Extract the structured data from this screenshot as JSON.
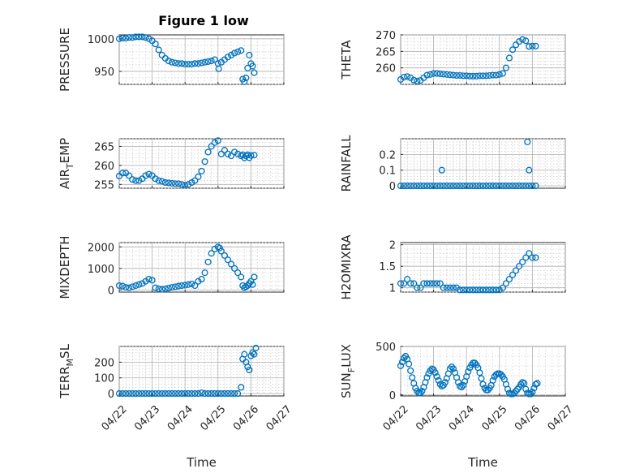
{
  "figure_title": "Figure 1 low",
  "marker_color": "#0072BD",
  "chart_data": [
    {
      "type": "scatter",
      "marker": "circle",
      "ylabel": "PRESSURE",
      "ylabel_sub": null,
      "xlim": [
        "04/22",
        "04/27"
      ],
      "ylim": [
        930,
        1006
      ],
      "yticks": [
        950,
        1000
      ],
      "ytick_labels": [
        "950",
        "1000"
      ],
      "xticks": [
        "04/22",
        "04/23",
        "04/24",
        "04/25",
        "04/26",
        "04/27"
      ],
      "xtick_labels_shown": false,
      "xlabel": "",
      "grid": true,
      "minor_grid": true,
      "x": [
        22.0,
        22.1,
        22.2,
        22.3,
        22.4,
        22.5,
        22.6,
        22.7,
        22.8,
        22.9,
        23.0,
        23.1,
        23.2,
        23.3,
        23.4,
        23.5,
        23.6,
        23.7,
        23.8,
        23.9,
        24.0,
        24.1,
        24.2,
        24.3,
        24.4,
        24.5,
        24.6,
        24.7,
        24.8,
        24.9,
        25.0,
        25.02,
        25.1,
        25.2,
        25.3,
        25.4,
        25.5,
        25.6,
        25.7,
        25.75,
        25.8,
        25.85,
        25.9,
        25.95,
        26.0,
        26.05,
        26.1
      ],
      "y": [
        1000,
        1001,
        1001,
        1002,
        1002,
        1003,
        1003,
        1003,
        1002,
        1000,
        997,
        992,
        983,
        975,
        970,
        966,
        964,
        963,
        962,
        962,
        961,
        961,
        961,
        962,
        962,
        963,
        964,
        965,
        966,
        968,
        962,
        954,
        964,
        968,
        972,
        975,
        978,
        980,
        982,
        938,
        934,
        940,
        955,
        975,
        962,
        958,
        948
      ]
    },
    {
      "type": "scatter",
      "marker": "circle",
      "ylabel": "THETA",
      "ylabel_sub": null,
      "xlim": [
        "04/22",
        "04/27"
      ],
      "ylim": [
        255,
        270
      ],
      "yticks": [
        260,
        265,
        270
      ],
      "ytick_labels": [
        "260",
        "265",
        "270"
      ],
      "xticks": [
        "04/22",
        "04/23",
        "04/24",
        "04/25",
        "04/26",
        "04/27"
      ],
      "xtick_labels_shown": false,
      "xlabel": "",
      "grid": true,
      "minor_grid": true,
      "x": [
        22.0,
        22.1,
        22.2,
        22.3,
        22.4,
        22.5,
        22.6,
        22.7,
        22.8,
        22.9,
        23.0,
        23.1,
        23.2,
        23.3,
        23.4,
        23.5,
        23.6,
        23.7,
        23.8,
        23.9,
        24.0,
        24.1,
        24.2,
        24.3,
        24.4,
        24.5,
        24.6,
        24.7,
        24.8,
        24.9,
        25.0,
        25.1,
        25.2,
        25.3,
        25.4,
        25.5,
        25.6,
        25.7,
        25.8,
        25.9,
        26.0,
        26.1
      ],
      "y": [
        256.5,
        257.2,
        257.4,
        257.0,
        256.3,
        256.0,
        256.2,
        257.0,
        257.8,
        258.0,
        258.3,
        258.3,
        258.2,
        258.1,
        258.0,
        257.9,
        257.8,
        257.7,
        257.7,
        257.6,
        257.6,
        257.5,
        257.5,
        257.5,
        257.6,
        257.6,
        257.6,
        257.7,
        257.8,
        257.8,
        258.0,
        258.3,
        260.0,
        263.0,
        265.5,
        267.0,
        268.0,
        268.6,
        268.2,
        266.5,
        266.6,
        266.6
      ]
    },
    {
      "type": "scatter",
      "marker": "circle",
      "ylabel": "AIR",
      "ylabel_sub": "T",
      "ylabel_suffix": "EMP",
      "xlim": [
        "04/22",
        "04/27"
      ],
      "ylim": [
        254,
        267
      ],
      "yticks": [
        255,
        260,
        265
      ],
      "ytick_labels": [
        "255",
        "260",
        "265"
      ],
      "xticks": [
        "04/22",
        "04/23",
        "04/24",
        "04/25",
        "04/26",
        "04/27"
      ],
      "xtick_labels_shown": false,
      "xlabel": "",
      "grid": true,
      "minor_grid": true,
      "x": [
        22.0,
        22.1,
        22.2,
        22.3,
        22.4,
        22.5,
        22.6,
        22.7,
        22.8,
        22.9,
        23.0,
        23.1,
        23.2,
        23.3,
        23.4,
        23.5,
        23.6,
        23.7,
        23.8,
        23.9,
        24.0,
        24.1,
        24.2,
        24.3,
        24.4,
        24.5,
        24.6,
        24.7,
        24.8,
        24.9,
        25.0,
        25.1,
        25.2,
        25.3,
        25.4,
        25.5,
        25.6,
        25.7,
        25.75,
        25.8,
        25.85,
        25.9,
        25.95,
        26.0,
        26.1
      ],
      "y": [
        257.2,
        258.0,
        258.0,
        257.3,
        256.3,
        256.0,
        256.0,
        256.5,
        257.3,
        257.7,
        257.3,
        256.5,
        256.0,
        255.8,
        255.5,
        255.4,
        255.3,
        255.2,
        255.2,
        255.0,
        254.8,
        255.0,
        255.5,
        256.0,
        257.0,
        258.5,
        261.0,
        263.5,
        265.0,
        266.0,
        266.5,
        263.0,
        264.0,
        263.0,
        262.5,
        263.5,
        263.0,
        262.5,
        262.8,
        262.0,
        262.5,
        262.8,
        262.0,
        262.6,
        262.7
      ]
    },
    {
      "type": "scatter",
      "marker": "circle",
      "ylabel": "RAINFALL",
      "ylabel_sub": null,
      "xlim": [
        "04/22",
        "04/27"
      ],
      "ylim": [
        -0.015,
        0.3
      ],
      "yticks": [
        0,
        0.1,
        0.2
      ],
      "ytick_labels": [
        "0",
        "0.1",
        "0.2"
      ],
      "xticks": [
        "04/22",
        "04/23",
        "04/24",
        "04/25",
        "04/26",
        "04/27"
      ],
      "xtick_labels_shown": false,
      "xlabel": "",
      "grid": true,
      "minor_grid": true,
      "x": [
        22.0,
        22.1,
        22.2,
        22.3,
        22.4,
        22.5,
        22.6,
        22.7,
        22.8,
        22.9,
        23.0,
        23.1,
        23.2,
        23.3,
        23.4,
        23.5,
        23.6,
        23.7,
        23.8,
        23.9,
        24.0,
        24.1,
        24.2,
        24.3,
        24.4,
        24.5,
        24.6,
        24.7,
        24.8,
        24.9,
        25.0,
        25.1,
        25.2,
        25.3,
        25.4,
        25.5,
        25.6,
        25.7,
        25.8,
        25.9,
        26.0,
        26.1,
        23.25,
        25.85,
        25.9
      ],
      "y": [
        0,
        0,
        0,
        0,
        0,
        0,
        0,
        0,
        0,
        0,
        0,
        0,
        0,
        0,
        0,
        0,
        0,
        0,
        0,
        0,
        0,
        0,
        0,
        0,
        0,
        0,
        0,
        0,
        0,
        0,
        0,
        0,
        0,
        0,
        0,
        0,
        0,
        0,
        0,
        0,
        0,
        0,
        0.1,
        0.28,
        0.1
      ]
    },
    {
      "type": "scatter",
      "marker": "circle",
      "ylabel": "MIXDEPTH",
      "ylabel_sub": null,
      "xlim": [
        "04/22",
        "04/27"
      ],
      "ylim": [
        -100,
        2200
      ],
      "yticks": [
        0,
        1000,
        2000
      ],
      "ytick_labels": [
        "0",
        "1000",
        "2000"
      ],
      "xticks": [
        "04/22",
        "04/23",
        "04/24",
        "04/25",
        "04/26",
        "04/27"
      ],
      "xtick_labels_shown": false,
      "xlabel": "",
      "grid": true,
      "minor_grid": true,
      "x": [
        22.0,
        22.1,
        22.2,
        22.3,
        22.4,
        22.5,
        22.6,
        22.7,
        22.8,
        22.9,
        23.0,
        23.1,
        23.2,
        23.3,
        23.4,
        23.5,
        23.6,
        23.7,
        23.8,
        23.9,
        24.0,
        24.1,
        24.2,
        24.3,
        24.4,
        24.5,
        24.6,
        24.7,
        24.8,
        24.9,
        25.0,
        25.05,
        25.1,
        25.2,
        25.3,
        25.4,
        25.5,
        25.6,
        25.7,
        25.75,
        25.8,
        25.85,
        25.9,
        25.95,
        26.0,
        26.05,
        26.1
      ],
      "y": [
        200,
        180,
        120,
        100,
        150,
        200,
        250,
        300,
        400,
        500,
        450,
        100,
        50,
        30,
        50,
        80,
        120,
        150,
        180,
        200,
        220,
        250,
        280,
        200,
        400,
        500,
        800,
        1300,
        1700,
        1900,
        2000,
        1950,
        1800,
        1600,
        1400,
        1200,
        1000,
        800,
        600,
        200,
        100,
        150,
        200,
        300,
        400,
        250,
        600
      ]
    },
    {
      "type": "scatter",
      "marker": "circle",
      "ylabel": "H2OMIXRA",
      "ylabel_sub": null,
      "xlim": [
        "04/22",
        "04/27"
      ],
      "ylim": [
        0.9,
        2.05
      ],
      "yticks": [
        1,
        1.5,
        2
      ],
      "ytick_labels": [
        "1",
        "1.5",
        "2"
      ],
      "xticks": [
        "04/22",
        "04/23",
        "04/24",
        "04/25",
        "04/26",
        "04/27"
      ],
      "xtick_labels_shown": false,
      "xlabel": "",
      "grid": true,
      "minor_grid": true,
      "x": [
        22.0,
        22.1,
        22.2,
        22.3,
        22.4,
        22.5,
        22.6,
        22.7,
        22.8,
        22.9,
        23.0,
        23.1,
        23.2,
        23.3,
        23.4,
        23.5,
        23.6,
        23.7,
        23.8,
        23.9,
        24.0,
        24.1,
        24.2,
        24.3,
        24.4,
        24.5,
        24.6,
        24.7,
        24.8,
        24.9,
        25.0,
        25.1,
        25.2,
        25.3,
        25.4,
        25.5,
        25.6,
        25.7,
        25.8,
        25.9,
        26.0,
        26.1
      ],
      "y": [
        1.1,
        1.1,
        1.2,
        1.1,
        1.1,
        1.0,
        1.0,
        1.1,
        1.1,
        1.1,
        1.1,
        1.1,
        1.1,
        1.0,
        1.0,
        1.0,
        1.0,
        1.0,
        0.95,
        0.95,
        0.95,
        0.95,
        0.95,
        0.95,
        0.95,
        0.95,
        0.95,
        0.95,
        0.95,
        0.95,
        0.95,
        1.0,
        1.1,
        1.2,
        1.3,
        1.4,
        1.5,
        1.6,
        1.7,
        1.8,
        1.7,
        1.7
      ]
    },
    {
      "type": "scatter",
      "marker": "circle",
      "ylabel": "TERR",
      "ylabel_sub": "M",
      "ylabel_suffix": "SL",
      "xlim": [
        "04/22",
        "04/27"
      ],
      "ylim": [
        -15,
        300
      ],
      "yticks": [
        0,
        100,
        200
      ],
      "ytick_labels": [
        "0",
        "100",
        "200"
      ],
      "xticks": [
        "04/22",
        "04/23",
        "04/24",
        "04/25",
        "04/26",
        "04/27"
      ],
      "xtick_labels_shown": true,
      "xlabel": "Time",
      "grid": true,
      "minor_grid": true,
      "x": [
        22.0,
        22.1,
        22.2,
        22.3,
        22.4,
        22.5,
        22.6,
        22.7,
        22.8,
        22.9,
        23.0,
        23.1,
        23.2,
        23.3,
        23.4,
        23.5,
        23.6,
        23.7,
        23.8,
        23.9,
        24.0,
        24.1,
        24.2,
        24.3,
        24.4,
        24.5,
        24.6,
        24.7,
        24.8,
        24.9,
        25.0,
        25.1,
        25.2,
        25.3,
        25.4,
        25.5,
        25.6,
        25.7,
        25.75,
        25.8,
        25.85,
        25.9,
        25.95,
        26.0,
        26.05,
        26.1,
        26.15
      ],
      "y": [
        0,
        0,
        0,
        0,
        0,
        0,
        0,
        0,
        0,
        0,
        0,
        0,
        0,
        0,
        0,
        0,
        0,
        0,
        0,
        0,
        0,
        0,
        0,
        0,
        0,
        5,
        0,
        0,
        0,
        0,
        0,
        0,
        0,
        0,
        0,
        0,
        0,
        40,
        220,
        250,
        200,
        170,
        150,
        240,
        260,
        250,
        290
      ]
    },
    {
      "type": "scatter",
      "marker": "circle",
      "ylabel": "SUN",
      "ylabel_sub": "F",
      "ylabel_suffix": "LUX",
      "xlim": [
        "04/22",
        "04/27"
      ],
      "ylim": [
        -10,
        500
      ],
      "yticks": [
        0,
        500
      ],
      "ytick_labels": [
        "0",
        "500"
      ],
      "xticks": [
        "04/22",
        "04/23",
        "04/24",
        "04/25",
        "04/26",
        "04/27"
      ],
      "xtick_labels_shown": true,
      "xlabel": "Time",
      "grid": true,
      "minor_grid": true,
      "x": [
        22.0,
        22.05,
        22.1,
        22.15,
        22.2,
        22.25,
        22.3,
        22.35,
        22.4,
        22.45,
        22.5,
        22.55,
        22.6,
        22.65,
        22.7,
        22.75,
        22.8,
        22.85,
        22.9,
        22.95,
        23.0,
        23.05,
        23.1,
        23.15,
        23.2,
        23.25,
        23.3,
        23.35,
        23.4,
        23.45,
        23.5,
        23.55,
        23.6,
        23.65,
        23.7,
        23.75,
        23.8,
        23.85,
        23.9,
        23.95,
        24.0,
        24.05,
        24.1,
        24.15,
        24.2,
        24.25,
        24.3,
        24.35,
        24.4,
        24.45,
        24.5,
        24.55,
        24.6,
        24.65,
        24.7,
        24.75,
        24.8,
        24.85,
        24.9,
        24.95,
        25.0,
        25.05,
        25.1,
        25.15,
        25.2,
        25.25,
        25.3,
        25.35,
        25.4,
        25.45,
        25.5,
        25.55,
        25.6,
        25.65,
        25.7,
        25.75,
        25.8,
        25.85,
        25.9,
        25.95,
        26.0,
        26.05,
        26.1,
        26.15
      ],
      "y": [
        300,
        340,
        380,
        400,
        370,
        320,
        250,
        180,
        120,
        70,
        40,
        20,
        20,
        40,
        80,
        130,
        180,
        220,
        250,
        270,
        260,
        230,
        190,
        150,
        110,
        90,
        100,
        130,
        170,
        220,
        270,
        290,
        270,
        230,
        180,
        130,
        90,
        80,
        100,
        140,
        190,
        240,
        280,
        310,
        330,
        330,
        310,
        280,
        230,
        170,
        110,
        70,
        50,
        50,
        70,
        100,
        150,
        190,
        210,
        220,
        220,
        210,
        190,
        160,
        110,
        60,
        20,
        10,
        10,
        20,
        40,
        60,
        80,
        110,
        130,
        120,
        60,
        20,
        10,
        10,
        30,
        70,
        110,
        120
      ]
    }
  ]
}
